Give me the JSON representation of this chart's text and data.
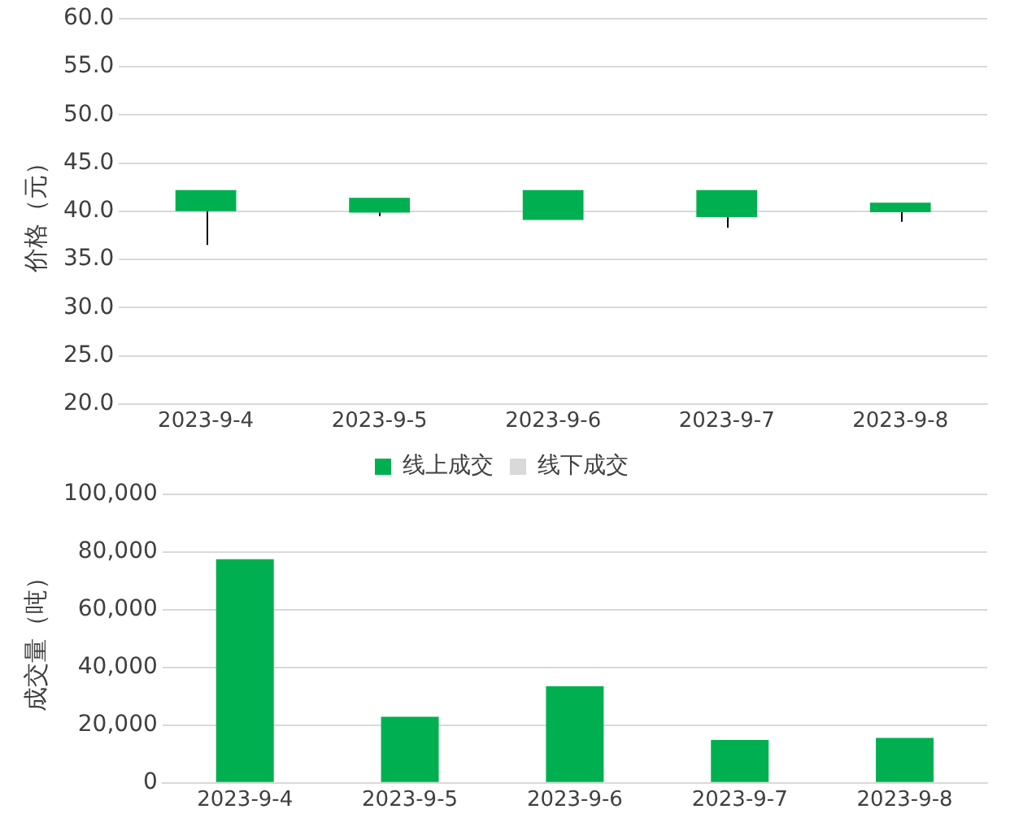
{
  "chart_data": [
    {
      "type": "candlestick",
      "ylabel": "价格（元）",
      "categories": [
        "2023-9-4",
        "2023-9-5",
        "2023-9-6",
        "2023-9-7",
        "2023-9-8"
      ],
      "color": "#00b050",
      "ohlc": [
        [
          42.2,
          42.2,
          36.5,
          40.0
        ],
        [
          41.4,
          41.4,
          39.5,
          39.85
        ],
        [
          42.2,
          42.2,
          39.1,
          39.1
        ],
        [
          42.2,
          42.2,
          38.3,
          39.4
        ],
        [
          40.9,
          40.9,
          38.9,
          39.9
        ]
      ],
      "ylim": [
        20,
        60
      ],
      "yticks": [
        {
          "value": 20,
          "label": "20.0"
        },
        {
          "value": 25,
          "label": "25.0"
        },
        {
          "value": 30,
          "label": "30.0"
        },
        {
          "value": 35,
          "label": "35.0"
        },
        {
          "value": 40,
          "label": "40.0"
        },
        {
          "value": 45,
          "label": "45.0"
        },
        {
          "value": 50,
          "label": "50.0"
        },
        {
          "value": 55,
          "label": "55.0"
        },
        {
          "value": 60,
          "label": "60.0"
        }
      ],
      "grid": "y"
    },
    {
      "type": "bar",
      "stacked": true,
      "ylabel": "成交量（吨）",
      "categories": [
        "2023-9-4",
        "2023-9-5",
        "2023-9-6",
        "2023-9-7",
        "2023-9-8"
      ],
      "legend": "top",
      "series": [
        {
          "name": "线上成交",
          "color": "#00b050",
          "values": [
            77500,
            22900,
            33500,
            14900,
            15600
          ]
        },
        {
          "name": "线下成交",
          "color": "#d9d9d9",
          "values": [
            0,
            0,
            0,
            0,
            0
          ]
        }
      ],
      "ylim": [
        0,
        100000
      ],
      "yticks": [
        0,
        {
          "value": 20000,
          "label": "20,000"
        },
        {
          "value": 40000,
          "label": "40,000"
        },
        {
          "value": 60000,
          "label": "60,000"
        },
        {
          "value": 80000,
          "label": "80,000"
        },
        {
          "value": 100000,
          "label": "100,000"
        }
      ],
      "grid": "y"
    }
  ]
}
